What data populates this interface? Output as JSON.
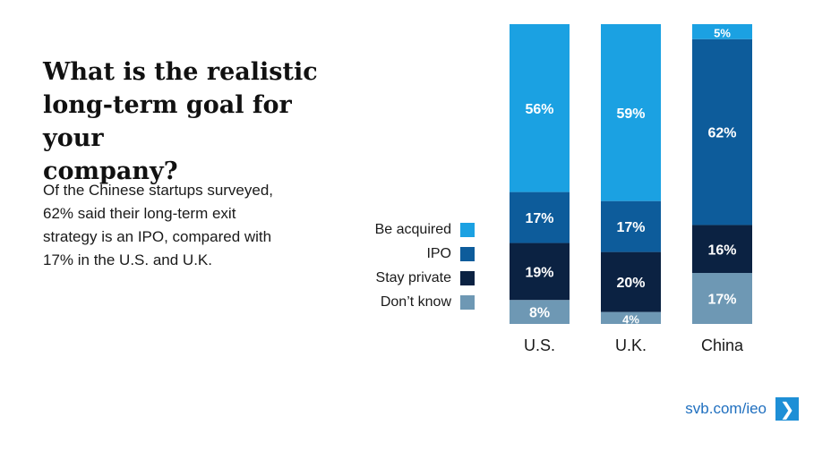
{
  "heading": {
    "title": "What is the realistic\nlong-term goal for your\ncompany?",
    "subtitle": "Of the Chinese startups surveyed,\n62% said their long-term exit\nstrategy is an IPO, compared with\n17% in the U.S. and U.K."
  },
  "legend": [
    {
      "label": "Be acquired",
      "color": "#1ba1e2"
    },
    {
      "label": "IPO",
      "color": "#0d5c9b"
    },
    {
      "label": "Stay private",
      "color": "#0b2242"
    },
    {
      "label": "Don’t know",
      "color": "#6e98b4"
    }
  ],
  "chart_data": {
    "type": "bar",
    "stacked": true,
    "categories": [
      "U.S.",
      "U.K.",
      "China"
    ],
    "series": [
      {
        "name": "Don’t know",
        "color": "#6e98b4",
        "values": [
          8,
          4,
          17
        ]
      },
      {
        "name": "Stay private",
        "color": "#0b2242",
        "values": [
          19,
          20,
          16
        ]
      },
      {
        "name": "IPO",
        "color": "#0d5c9b",
        "values": [
          17,
          17,
          62
        ]
      },
      {
        "name": "Be acquired",
        "color": "#1ba1e2",
        "values": [
          56,
          59,
          5
        ]
      }
    ],
    "value_suffix": "%",
    "ylim": [
      0,
      100
    ],
    "grid": false,
    "legend_position": "left"
  },
  "footer": {
    "link_text": "svb.com/ieo",
    "arrow_icon": "chevron-right-icon",
    "arrow_glyph": "❯"
  }
}
